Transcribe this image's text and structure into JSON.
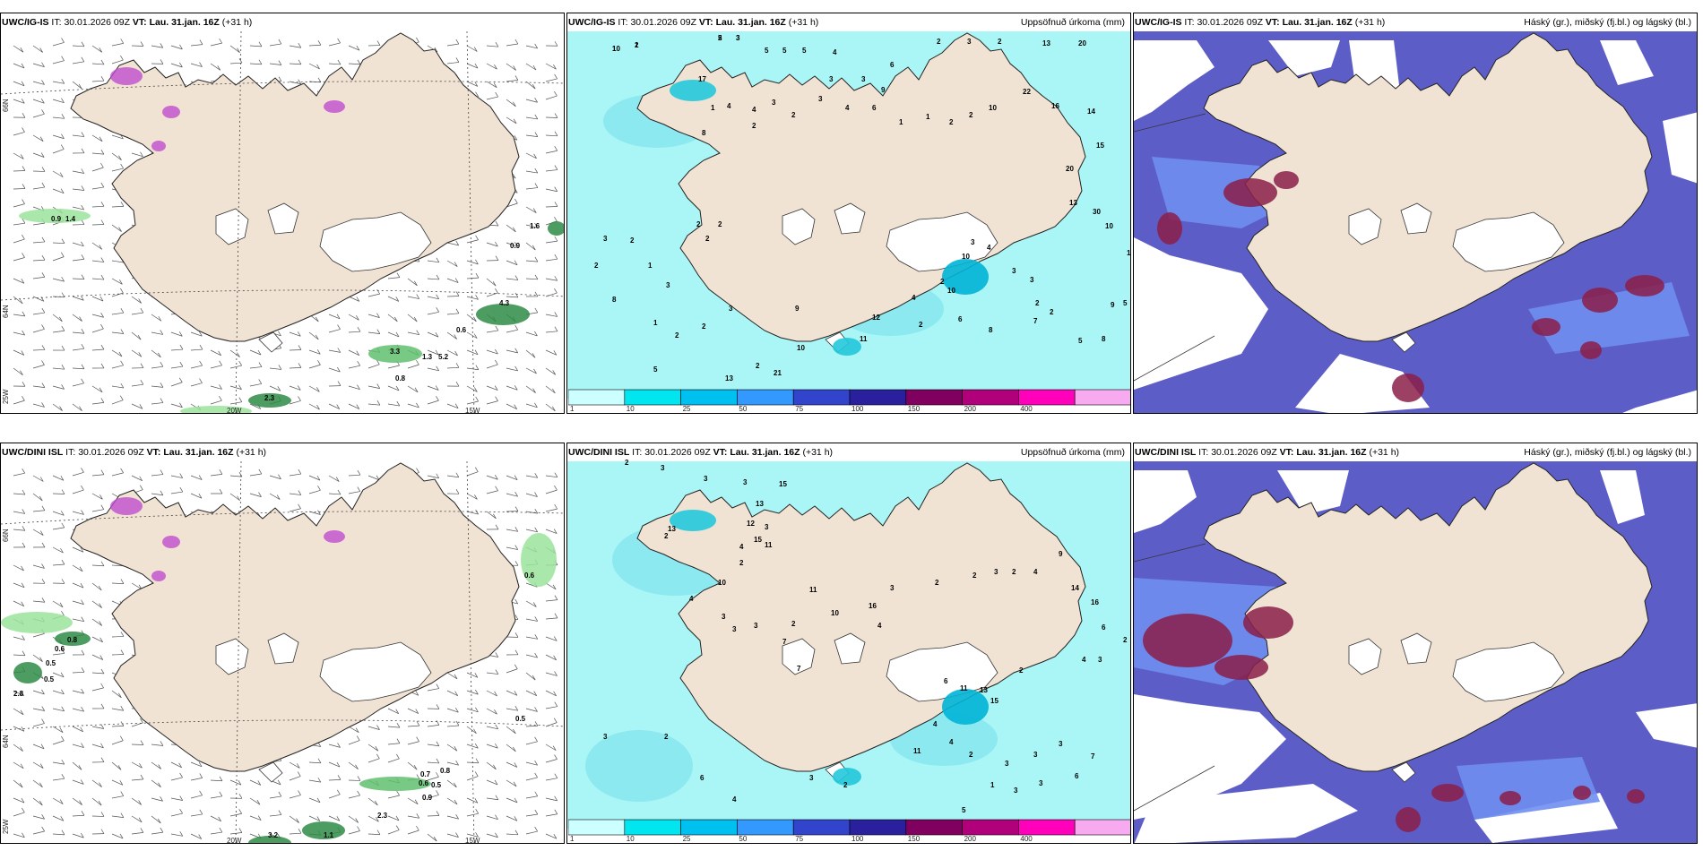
{
  "rows": [
    {
      "model": "UWC/IG-IS",
      "it_label": "IT:",
      "it_value": "30.01.2026 09Z",
      "vt_label": "VT:",
      "vt_value": "Lau. 31.jan. 16Z",
      "lead": "(+31 h)",
      "precip_title": "Uppsöfnuð úrkoma (mm)",
      "cloud_title": "Háský (gr.), miðský (fj.bl.) og lágský (bl.)",
      "wind_values": [
        "0.9",
        "1.4",
        "1.6",
        "0.9",
        "4.3",
        "0.6",
        "3.3",
        "1.3",
        "5.2",
        "0.8",
        "2.3"
      ],
      "precip_values": [
        "1",
        "1",
        "5",
        "3",
        "5",
        "5",
        "5",
        "4",
        "3",
        "3",
        "9",
        "6",
        "2",
        "3",
        "2",
        "13",
        "20",
        "17",
        "4",
        "4",
        "2",
        "1",
        "8",
        "2",
        "2",
        "2",
        "3",
        "3",
        "2",
        "4",
        "6",
        "1",
        "1",
        "2",
        "2",
        "10",
        "22",
        "16",
        "14",
        "15",
        "20",
        "13",
        "30",
        "10",
        "13",
        "9",
        "5",
        "8",
        "5",
        "7",
        "8",
        "6",
        "10",
        "10",
        "3",
        "4",
        "3",
        "3",
        "2",
        "2",
        "2",
        "4",
        "2",
        "12",
        "11",
        "10",
        "21",
        "2",
        "13",
        "2",
        "1",
        "5",
        "8",
        "2",
        "3",
        "2",
        "1",
        "3",
        "2",
        "3",
        "9",
        "10",
        "2",
        "2",
        "3"
      ]
    },
    {
      "model": "UWC/DINI ISL",
      "it_label": "IT:",
      "it_value": "30.01.2026 09Z",
      "vt_label": "VT:",
      "vt_value": "Lau. 31.jan. 16Z",
      "lead": "(+31 h)",
      "precip_title": "Uppsöfnuð úrkoma (mm)",
      "cloud_title": "Háský (gr.), miðský (fj.bl.) og lágský (bl.)",
      "wind_values": [
        "0.8",
        "0.6",
        "0.5",
        "0.5",
        "2.8",
        "0.6",
        "0.5",
        "0.7",
        "0.8",
        "0.6",
        "0.5",
        "0.9",
        "2.3",
        "1.1",
        "3.2"
      ],
      "precip_values": [
        "2",
        "3",
        "3",
        "3",
        "15",
        "13",
        "12",
        "4",
        "2",
        "3",
        "13",
        "2",
        "15",
        "11",
        "10",
        "4",
        "3",
        "3",
        "3",
        "2",
        "7",
        "7",
        "11",
        "10",
        "16",
        "4",
        "3",
        "2",
        "2",
        "3",
        "2",
        "4",
        "9",
        "14",
        "16",
        "6",
        "2",
        "3",
        "4",
        "2",
        "15",
        "13",
        "11",
        "6",
        "4",
        "4",
        "2",
        "3",
        "3",
        "3",
        "7",
        "6",
        "3",
        "3",
        "1",
        "5",
        "11",
        "2",
        "3",
        "4",
        "6",
        "2",
        "3"
      ]
    }
  ],
  "axis_labels": {
    "lat_66": "66N",
    "lat_64": "64N",
    "lon_25": "25W",
    "lon_20": "20W",
    "lon_15": "15W"
  },
  "legend": {
    "ticks": [
      "1",
      "10",
      "25",
      "50",
      "75",
      "100",
      "150",
      "200",
      "400"
    ],
    "colors": [
      "#ccffff",
      "#00e5f0",
      "#00c0f0",
      "#3399ff",
      "#3344cc",
      "#2a1f9c",
      "#800060",
      "#b0007a",
      "#ff00bb",
      "#f7aaf0"
    ]
  },
  "colors": {
    "land": "#f1e3d3",
    "precip_fill": "#aaf6f6",
    "cloud_mid": "#5d5dc8",
    "cloud_low": "#6f8ef0",
    "cloud_high": "#8b1e49",
    "wind_green": "#226b35"
  }
}
